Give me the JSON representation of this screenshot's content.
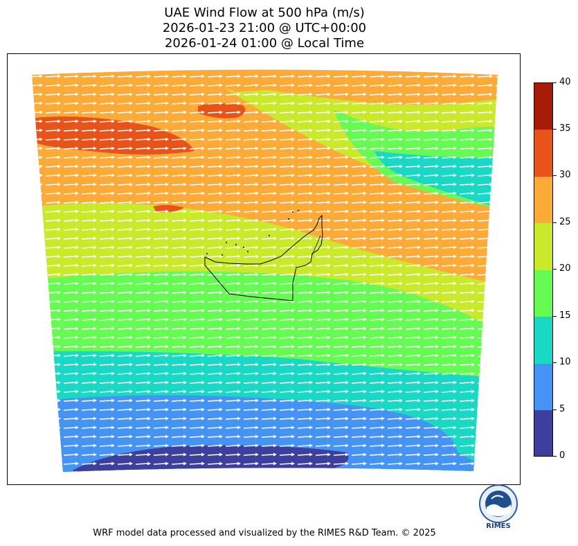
{
  "title": {
    "line1": "UAE Wind Flow at 500 hPa (m/s)",
    "line2": "2026-01-23 21:00 @ UTC+00:00",
    "line3": "2026-01-24 01:00 @ Local Time"
  },
  "colorbar": {
    "ticks": [
      "0",
      "5",
      "10",
      "15",
      "20",
      "25",
      "30",
      "35",
      "40"
    ],
    "levels": [
      {
        "range": [
          0,
          5
        ],
        "color": "#3d3f9c"
      },
      {
        "range": [
          5,
          10
        ],
        "color": "#4593f5"
      },
      {
        "range": [
          10,
          15
        ],
        "color": "#1ad9c4"
      },
      {
        "range": [
          15,
          20
        ],
        "color": "#65fb52"
      },
      {
        "range": [
          20,
          25
        ],
        "color": "#cbe92b"
      },
      {
        "range": [
          25,
          30
        ],
        "color": "#fdab38"
      },
      {
        "range": [
          30,
          35
        ],
        "color": "#e8531a"
      },
      {
        "range": [
          35,
          40
        ],
        "color": "#a61b08"
      }
    ]
  },
  "map": {
    "region": "UAE",
    "vector_color": "#ffffff",
    "border_color": "#000000"
  },
  "logo": {
    "text": "RIMES",
    "name": "rimes-logo"
  },
  "footer": "WRF model data processed and visualized by the RIMES R&D Team. © 2025"
}
